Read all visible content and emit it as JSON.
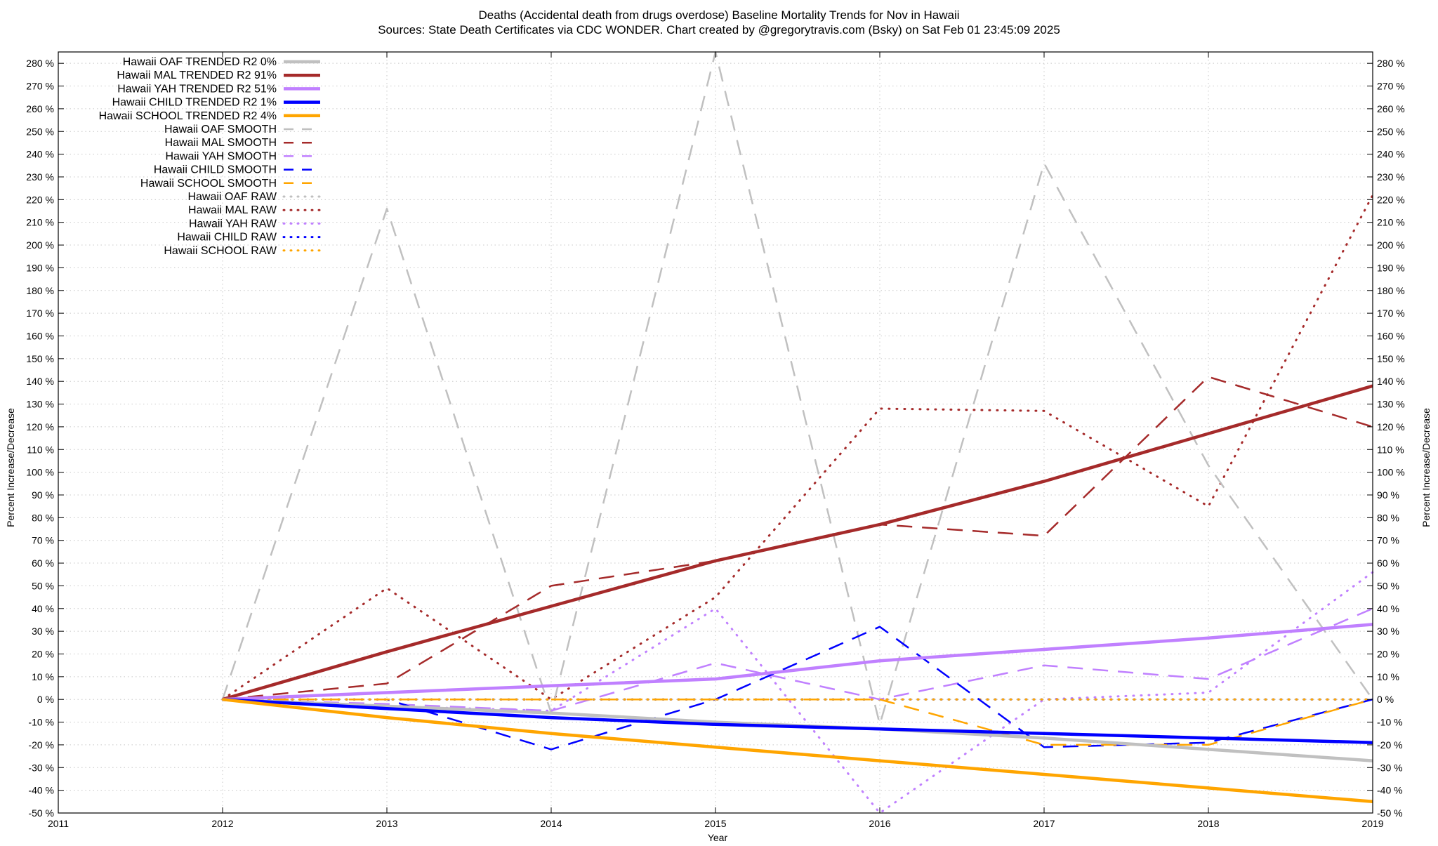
{
  "chart_data": {
    "type": "line",
    "title": "Deaths (Accidental death from drugs overdose)  Baseline Mortality Trends for Nov in Hawaii",
    "subtitle": "Sources: State Death Certificates via CDC WONDER.               Chart created by @gregorytravis.com (Bsky) on Sat Feb 01 23:45:09 2025",
    "xlabel": "Year",
    "ylabel_left": "Percent Increase/Decrease",
    "ylabel_right": "Percent Increase/Decrease",
    "xlim": [
      2011,
      2019
    ],
    "ylim": [
      -50,
      285
    ],
    "x_ticks": [
      "2011",
      "2012",
      "2013",
      "2014",
      "2015",
      "2016",
      "2017",
      "2018",
      "2019"
    ],
    "y_ticks": [
      "-50 %",
      "-40 %",
      "-30 %",
      "-20 %",
      "-10 %",
      "0 %",
      "10 %",
      "20 %",
      "30 %",
      "40 %",
      "50 %",
      "60 %",
      "70 %",
      "80 %",
      "90 %",
      "100 %",
      "110 %",
      "120 %",
      "130 %",
      "140 %",
      "150 %",
      "160 %",
      "170 %",
      "180 %",
      "190 %",
      "200 %",
      "210 %",
      "220 %",
      "230 %",
      "240 %",
      "250 %",
      "260 %",
      "270 %",
      "280 %"
    ],
    "y_tick_values": [
      -50,
      -40,
      -30,
      -20,
      -10,
      0,
      10,
      20,
      30,
      40,
      50,
      60,
      70,
      80,
      90,
      100,
      110,
      120,
      130,
      140,
      150,
      160,
      170,
      180,
      190,
      200,
      210,
      220,
      230,
      240,
      250,
      260,
      270,
      280
    ],
    "grid": true,
    "legend_position": "top-left",
    "series": [
      {
        "name": "Hawaii OAF TRENDED R2   0%",
        "style": "solid",
        "color": "#c0c0c0",
        "x": [
          2012,
          2013,
          2014,
          2015,
          2016,
          2017,
          2018,
          2019
        ],
        "y": [
          0,
          -3,
          -6,
          -10,
          -13,
          -17,
          -22,
          -27
        ]
      },
      {
        "name": "Hawaii MAL TRENDED R2  91%",
        "style": "solid",
        "color": "#a52a2a",
        "x": [
          2012,
          2013,
          2014,
          2015,
          2016,
          2017,
          2018,
          2019
        ],
        "y": [
          0,
          21,
          41,
          61,
          77,
          96,
          117,
          138
        ]
      },
      {
        "name": "Hawaii YAH TRENDED R2  51%",
        "style": "solid",
        "color": "#c080ff",
        "x": [
          2012,
          2013,
          2014,
          2015,
          2016,
          2017,
          2018,
          2019
        ],
        "y": [
          0,
          3,
          6,
          9,
          17,
          22,
          27,
          33
        ]
      },
      {
        "name": "Hawaii CHILD TRENDED R2   1%",
        "style": "solid",
        "color": "#0000ff",
        "x": [
          2012,
          2013,
          2014,
          2015,
          2016,
          2017,
          2018,
          2019
        ],
        "y": [
          0,
          -4,
          -8,
          -11,
          -13,
          -15,
          -17,
          -19
        ]
      },
      {
        "name": "Hawaii SCHOOL TRENDED R2   4%",
        "style": "solid",
        "color": "#ffa500",
        "x": [
          2012,
          2013,
          2014,
          2015,
          2016,
          2017,
          2018,
          2019
        ],
        "y": [
          0,
          -8,
          -15,
          -21,
          -27,
          -33,
          -39,
          -45
        ]
      },
      {
        "name": "Hawaii OAF SMOOTH",
        "style": "dashed",
        "color": "#c0c0c0",
        "x": [
          2012,
          2013,
          2014,
          2015,
          2016,
          2017,
          2018,
          2019
        ],
        "y": [
          0,
          216,
          -6,
          285,
          -11,
          236,
          103,
          0
        ]
      },
      {
        "name": "Hawaii MAL SMOOTH",
        "style": "dashed",
        "color": "#a52a2a",
        "x": [
          2012,
          2013,
          2014,
          2015,
          2016,
          2017,
          2018,
          2019
        ],
        "y": [
          0,
          7,
          50,
          61,
          77,
          72,
          142,
          120
        ]
      },
      {
        "name": "Hawaii YAH SMOOTH",
        "style": "dashed",
        "color": "#c080ff",
        "x": [
          2012,
          2013,
          2014,
          2015,
          2016,
          2017,
          2018,
          2019
        ],
        "y": [
          0,
          -2,
          -5,
          16,
          0,
          15,
          9,
          40
        ]
      },
      {
        "name": "Hawaii CHILD SMOOTH",
        "style": "dashed",
        "color": "#0000ff",
        "x": [
          2012,
          2013,
          2014,
          2015,
          2016,
          2017,
          2018,
          2019
        ],
        "y": [
          0,
          0,
          -22,
          0,
          32,
          -21,
          -19,
          0
        ]
      },
      {
        "name": "Hawaii SCHOOL SMOOTH",
        "style": "dashed",
        "color": "#ffa500",
        "x": [
          2012,
          2013,
          2014,
          2015,
          2016,
          2017,
          2018,
          2019
        ],
        "y": [
          0,
          0,
          0,
          0,
          0,
          -20,
          -20,
          0
        ]
      },
      {
        "name": "Hawaii OAF RAW",
        "style": "dotted",
        "color": "#c0c0c0",
        "x": [
          2012,
          2013,
          2014,
          2015,
          2016,
          2017,
          2018,
          2019
        ],
        "y": [
          0,
          0,
          0,
          0,
          0,
          0,
          0,
          0
        ]
      },
      {
        "name": "Hawaii MAL RAW",
        "style": "dotted",
        "color": "#a52a2a",
        "x": [
          2012,
          2013,
          2014,
          2015,
          2016,
          2017,
          2018,
          2019
        ],
        "y": [
          0,
          49,
          0,
          45,
          128,
          127,
          85,
          222
        ]
      },
      {
        "name": "Hawaii YAH RAW",
        "style": "dotted",
        "color": "#c080ff",
        "x": [
          2012,
          2013,
          2014,
          2015,
          2016,
          2017,
          2018,
          2019
        ],
        "y": [
          0,
          -3,
          -5,
          40,
          -50,
          0,
          3,
          56
        ]
      },
      {
        "name": "Hawaii CHILD RAW",
        "style": "dotted",
        "color": "#0000ff",
        "x": [
          2012,
          2013,
          2014,
          2015,
          2016,
          2017,
          2018,
          2019
        ],
        "y": [
          0,
          0,
          0,
          0,
          0,
          0,
          0,
          0
        ]
      },
      {
        "name": "Hawaii SCHOOL RAW",
        "style": "dotted",
        "color": "#ffa500",
        "x": [
          2012,
          2013,
          2014,
          2015,
          2016,
          2017,
          2018,
          2019
        ],
        "y": [
          0,
          0,
          0,
          0,
          0,
          0,
          0,
          0
        ]
      }
    ]
  }
}
